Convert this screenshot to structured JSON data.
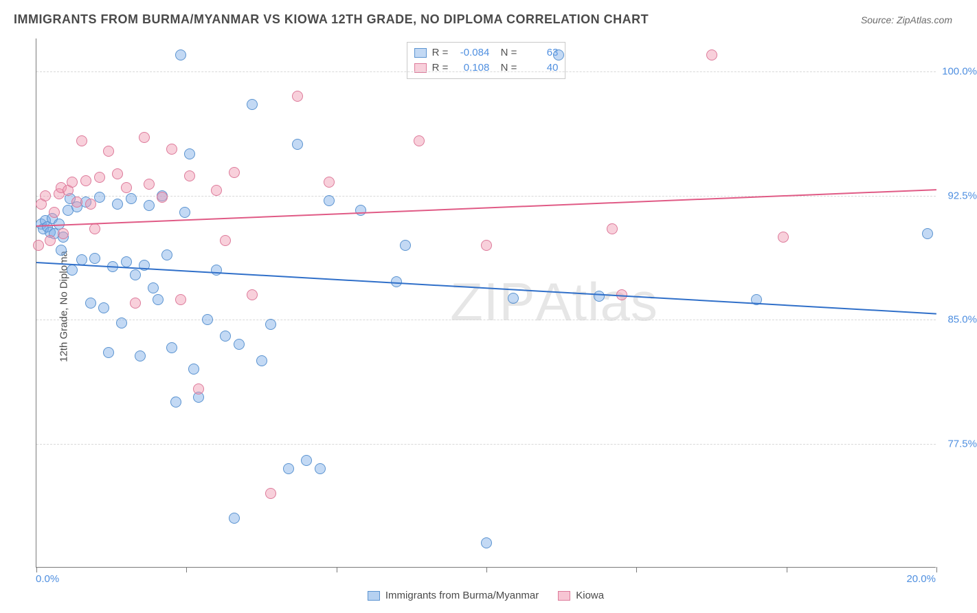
{
  "title": "IMMIGRANTS FROM BURMA/MYANMAR VS KIOWA 12TH GRADE, NO DIPLOMA CORRELATION CHART",
  "source": "Source: ZipAtlas.com",
  "y_axis_title": "12th Grade, No Diploma",
  "watermark": "ZIPAtlas",
  "chart": {
    "type": "scatter",
    "xlim": [
      0,
      20
    ],
    "ylim": [
      70,
      102
    ],
    "x_tick_label_left": "0.0%",
    "x_tick_label_right": "20.0%",
    "x_minor_ticks": [
      0,
      3.33,
      6.67,
      10,
      13.33,
      16.67,
      20
    ],
    "y_gridlines": [
      77.5,
      85.0,
      92.5,
      100.0
    ],
    "y_tick_labels": [
      "77.5%",
      "85.0%",
      "92.5%",
      "100.0%"
    ],
    "background_color": "#ffffff",
    "grid_color": "#d8d8d8",
    "axis_color": "#7a7a7a",
    "tick_label_color": "#4f8fe0",
    "label_fontsize": 15,
    "title_fontsize": 18,
    "title_color": "#4a4a4a"
  },
  "series": [
    {
      "name": "Immigrants from Burma/Myanmar",
      "color_fill": "rgba(122,171,230,0.45)",
      "color_stroke": "#5a93d0",
      "R": "-0.084",
      "N": "63",
      "trend": {
        "y_at_x0": 88.5,
        "y_at_x20": 85.4,
        "color": "#2f6fc9",
        "width": 2
      },
      "points": [
        [
          0.1,
          90.8
        ],
        [
          0.15,
          90.5
        ],
        [
          0.2,
          91.0
        ],
        [
          0.25,
          90.6
        ],
        [
          0.3,
          90.3
        ],
        [
          0.35,
          91.1
        ],
        [
          0.4,
          90.2
        ],
        [
          0.5,
          90.8
        ],
        [
          0.55,
          89.2
        ],
        [
          0.6,
          90.0
        ],
        [
          0.7,
          91.6
        ],
        [
          0.75,
          92.3
        ],
        [
          0.8,
          88.0
        ],
        [
          0.9,
          91.8
        ],
        [
          1.0,
          88.6
        ],
        [
          1.1,
          92.1
        ],
        [
          1.2,
          86.0
        ],
        [
          1.3,
          88.7
        ],
        [
          1.4,
          92.4
        ],
        [
          1.5,
          85.7
        ],
        [
          1.6,
          83.0
        ],
        [
          1.7,
          88.2
        ],
        [
          1.8,
          92.0
        ],
        [
          1.9,
          84.8
        ],
        [
          2.0,
          88.5
        ],
        [
          2.1,
          92.3
        ],
        [
          2.2,
          87.7
        ],
        [
          2.3,
          82.8
        ],
        [
          2.4,
          88.3
        ],
        [
          2.5,
          91.9
        ],
        [
          2.6,
          86.9
        ],
        [
          2.7,
          86.2
        ],
        [
          2.8,
          92.5
        ],
        [
          2.9,
          88.9
        ],
        [
          3.0,
          83.3
        ],
        [
          3.1,
          80.0
        ],
        [
          3.2,
          101.0
        ],
        [
          3.3,
          91.5
        ],
        [
          3.4,
          95.0
        ],
        [
          3.5,
          82.0
        ],
        [
          3.6,
          80.3
        ],
        [
          3.8,
          85.0
        ],
        [
          4.0,
          88.0
        ],
        [
          4.2,
          84.0
        ],
        [
          4.4,
          73.0
        ],
        [
          4.5,
          83.5
        ],
        [
          4.8,
          98.0
        ],
        [
          5.0,
          82.5
        ],
        [
          5.2,
          84.7
        ],
        [
          5.6,
          76.0
        ],
        [
          5.8,
          95.6
        ],
        [
          6.0,
          76.5
        ],
        [
          6.3,
          76.0
        ],
        [
          6.5,
          92.2
        ],
        [
          7.2,
          91.6
        ],
        [
          8.0,
          87.3
        ],
        [
          8.2,
          89.5
        ],
        [
          10.0,
          71.5
        ],
        [
          10.6,
          86.3
        ],
        [
          11.6,
          101.0
        ],
        [
          12.5,
          86.4
        ],
        [
          16.0,
          86.2
        ],
        [
          19.8,
          90.2
        ]
      ]
    },
    {
      "name": "Kiowa",
      "color_fill": "rgba(240,150,175,0.45)",
      "color_stroke": "#dd7a9a",
      "R": "0.108",
      "N": "40",
      "trend": {
        "y_at_x0": 90.7,
        "y_at_x20": 92.9,
        "color": "#e05a85",
        "width": 2
      },
      "points": [
        [
          0.05,
          89.5
        ],
        [
          0.1,
          92.0
        ],
        [
          0.2,
          92.5
        ],
        [
          0.3,
          89.8
        ],
        [
          0.4,
          91.5
        ],
        [
          0.5,
          92.6
        ],
        [
          0.55,
          93.0
        ],
        [
          0.6,
          90.2
        ],
        [
          0.7,
          92.8
        ],
        [
          0.8,
          93.3
        ],
        [
          0.9,
          92.1
        ],
        [
          1.0,
          95.8
        ],
        [
          1.1,
          93.4
        ],
        [
          1.2,
          92.0
        ],
        [
          1.3,
          90.5
        ],
        [
          1.4,
          93.6
        ],
        [
          1.6,
          95.2
        ],
        [
          1.8,
          93.8
        ],
        [
          2.0,
          93.0
        ],
        [
          2.2,
          86.0
        ],
        [
          2.4,
          96.0
        ],
        [
          2.5,
          93.2
        ],
        [
          2.8,
          92.4
        ],
        [
          3.0,
          95.3
        ],
        [
          3.2,
          86.2
        ],
        [
          3.4,
          93.7
        ],
        [
          3.6,
          80.8
        ],
        [
          4.0,
          92.8
        ],
        [
          4.2,
          89.8
        ],
        [
          4.4,
          93.9
        ],
        [
          4.8,
          86.5
        ],
        [
          5.2,
          74.5
        ],
        [
          5.8,
          98.5
        ],
        [
          6.5,
          93.3
        ],
        [
          8.5,
          95.8
        ],
        [
          10.0,
          89.5
        ],
        [
          12.8,
          90.5
        ],
        [
          13.0,
          86.5
        ],
        [
          15.0,
          101.0
        ],
        [
          16.6,
          90.0
        ]
      ]
    }
  ],
  "legend_bottom": [
    {
      "label": "Immigrants from Burma/Myanmar",
      "fill": "rgba(122,171,230,0.55)",
      "stroke": "#5a93d0"
    },
    {
      "label": "Kiowa",
      "fill": "rgba(240,150,175,0.55)",
      "stroke": "#dd7a9a"
    }
  ]
}
